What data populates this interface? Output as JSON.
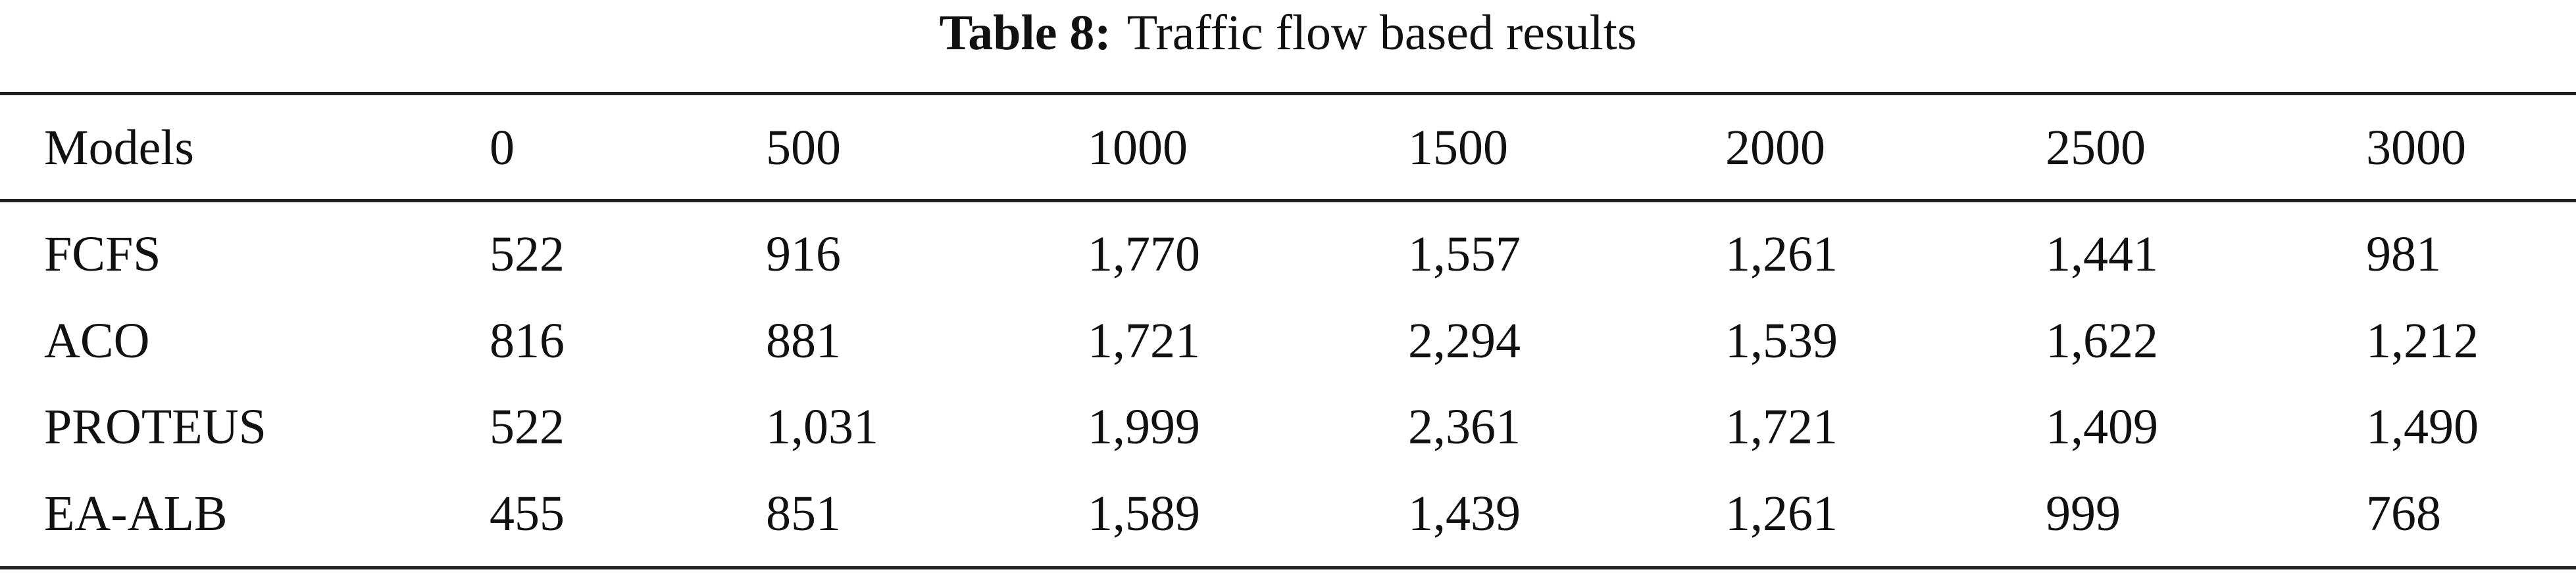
{
  "title": {
    "label": "Table 8:",
    "text": "Traffic flow based results"
  },
  "table": {
    "header": [
      "Models",
      "0",
      "500",
      "1000",
      "1500",
      "2000",
      "2500",
      "3000"
    ],
    "rows": [
      [
        "FCFS",
        "522",
        "916",
        "1,770",
        "1,557",
        "1,261",
        "1,441",
        "981"
      ],
      [
        "ACO",
        "816",
        "881",
        "1,721",
        "2,294",
        "1,539",
        "1,622",
        "1,212"
      ],
      [
        "PROTEUS",
        "522",
        "1,031",
        "1,999",
        "2,361",
        "1,721",
        "1,409",
        "1,490"
      ],
      [
        "EA-ALB",
        "455",
        "851",
        "1,589",
        "1,439",
        "1,261",
        "999",
        "768"
      ]
    ]
  }
}
